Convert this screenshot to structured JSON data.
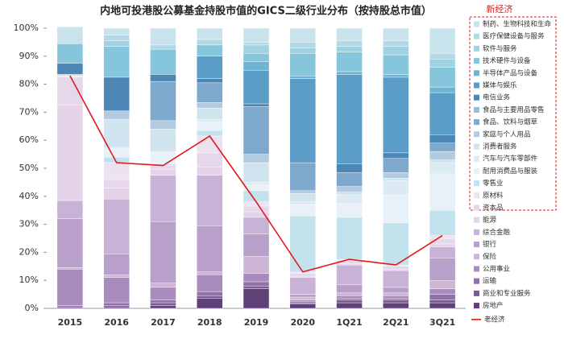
{
  "chart_data": {
    "type": "stacked_bar",
    "title": "内地可投港股公募基金持股市值的GICS二级行业分布（按持股总市值）",
    "annotation": "新经济",
    "categories": [
      "2015",
      "2016",
      "2017",
      "2018",
      "2019",
      "2020",
      "1Q21",
      "2Q21",
      "3Q21"
    ],
    "ylim": [
      0,
      100
    ],
    "yticks": [
      {
        "value": 0,
        "label": "0%"
      },
      {
        "value": 10,
        "label": "10%"
      },
      {
        "value": 20,
        "label": "20%"
      },
      {
        "value": 30,
        "label": "30%"
      },
      {
        "value": 40,
        "label": "40%"
      },
      {
        "value": 50,
        "label": "50%"
      },
      {
        "value": 60,
        "label": "60%"
      },
      {
        "value": 70,
        "label": "70%"
      },
      {
        "value": 80,
        "label": "80%"
      },
      {
        "value": 90,
        "label": "90%"
      },
      {
        "value": 100,
        "label": "100%"
      }
    ],
    "series": [
      {
        "name": "制药、生物科技和生命",
        "color": "#c9e3ec",
        "values": [
          6,
          2.5,
          6,
          4,
          5,
          5,
          4.5,
          4.5,
          9
        ]
      },
      {
        "name": "医疗保健设备与服务",
        "color": "#b3d9e6",
        "values": [
          0,
          2,
          1.5,
          2,
          1,
          2,
          2,
          2,
          2
        ]
      },
      {
        "name": "软件与服务",
        "color": "#a2d2e2",
        "values": [
          0,
          2,
          0,
          0,
          3,
          2,
          2,
          3,
          3
        ]
      },
      {
        "name": "技术硬件与设备",
        "color": "#86c6dc",
        "values": [
          7,
          11,
          9,
          4,
          3,
          8,
          7,
          7,
          7
        ]
      },
      {
        "name": "半导体产品与设备",
        "color": "#6db6d3",
        "values": [
          0,
          0,
          0,
          0,
          3,
          1,
          1,
          1,
          2
        ]
      },
      {
        "name": "媒体与娱乐",
        "color": "#5a9dc6",
        "values": [
          0,
          0,
          0,
          8,
          12,
          30,
          32,
          27,
          15
        ]
      },
      {
        "name": "电信业务",
        "color": "#4d87b6",
        "values": [
          4,
          12,
          2.5,
          1.5,
          1,
          0,
          3,
          2,
          3
        ]
      },
      {
        "name": "食品与主要用品零售",
        "color": "#9cbcd4",
        "values": [
          0,
          0,
          0,
          0,
          0,
          0,
          0,
          0,
          0
        ]
      },
      {
        "name": "食品、饮料与烟草",
        "color": "#7ea9cd",
        "values": [
          0,
          0,
          14,
          7,
          17,
          10,
          5,
          5,
          3
        ]
      },
      {
        "name": "家庭与个人用品",
        "color": "#b2cbe0",
        "values": [
          0,
          3,
          3,
          2,
          3,
          1,
          2,
          2,
          3
        ]
      },
      {
        "name": "消费者服务",
        "color": "#cfe4ef",
        "values": [
          0,
          10,
          8,
          4,
          7,
          3,
          1,
          1,
          1
        ]
      },
      {
        "name": "汽车与汽车零部件",
        "color": "#dceaf3",
        "values": [
          0,
          0.5,
          0.5,
          1,
          1,
          1,
          3,
          5,
          4
        ]
      },
      {
        "name": "耐用消费品与服装",
        "color": "#e8f1f7",
        "values": [
          0,
          3,
          4,
          3,
          2,
          4,
          5,
          10,
          13
        ]
      },
      {
        "name": "零售业",
        "color": "#c2e2ee",
        "values": [
          0.5,
          2,
          0.5,
          2,
          4,
          20,
          15,
          15,
          9
        ]
      },
      {
        "name": "原材料",
        "color": "#ece2f0",
        "values": [
          0.5,
          6,
          0,
          6,
          1.5,
          0.5,
          0.5,
          0.5,
          1
        ]
      },
      {
        "name": "资本品",
        "color": "#e6d7eb",
        "values": [
          10,
          3,
          1.5,
          5,
          2,
          1,
          1,
          1,
          2
        ]
      },
      {
        "name": "能源",
        "color": "#e4d3e9",
        "values": [
          34,
          4,
          2,
          3,
          2,
          0.5,
          0.5,
          0.5,
          1
        ]
      },
      {
        "name": "综合金融",
        "color": "#c8b3d6",
        "values": [
          6.5,
          19.5,
          16.5,
          18,
          6,
          6,
          7,
          6,
          4
        ]
      },
      {
        "name": "银行",
        "color": "#b9a0cb",
        "values": [
          17.5,
          7.5,
          22,
          16.5,
          8,
          1,
          3,
          2,
          8
        ]
      },
      {
        "name": "保险",
        "color": "#cdb5d5",
        "values": [
          0.5,
          1,
          1.5,
          1,
          6,
          1,
          1,
          1,
          3
        ]
      },
      {
        "name": "公用事业",
        "color": "#a98bbe",
        "values": [
          13,
          9,
          4.5,
          6,
          3,
          0.5,
          1,
          1,
          2
        ]
      },
      {
        "name": "运输",
        "color": "#9072a7",
        "values": [
          0.5,
          1,
          1,
          1.5,
          1.5,
          0.5,
          0.5,
          0.5,
          2
        ]
      },
      {
        "name": "商业和专业服务",
        "color": "#7b5b93",
        "values": [
          0.5,
          0.5,
          1,
          1,
          1,
          0.5,
          1,
          1,
          1
        ]
      },
      {
        "name": "房地产",
        "color": "#5f4079",
        "values": [
          0,
          0.5,
          1,
          3.5,
          7,
          1.5,
          2,
          2,
          2
        ]
      }
    ],
    "line": {
      "name": "老经济",
      "color": "#e0191b",
      "values": [
        83,
        52,
        51,
        61.5,
        38,
        13,
        17.5,
        15.5,
        26
      ]
    }
  }
}
